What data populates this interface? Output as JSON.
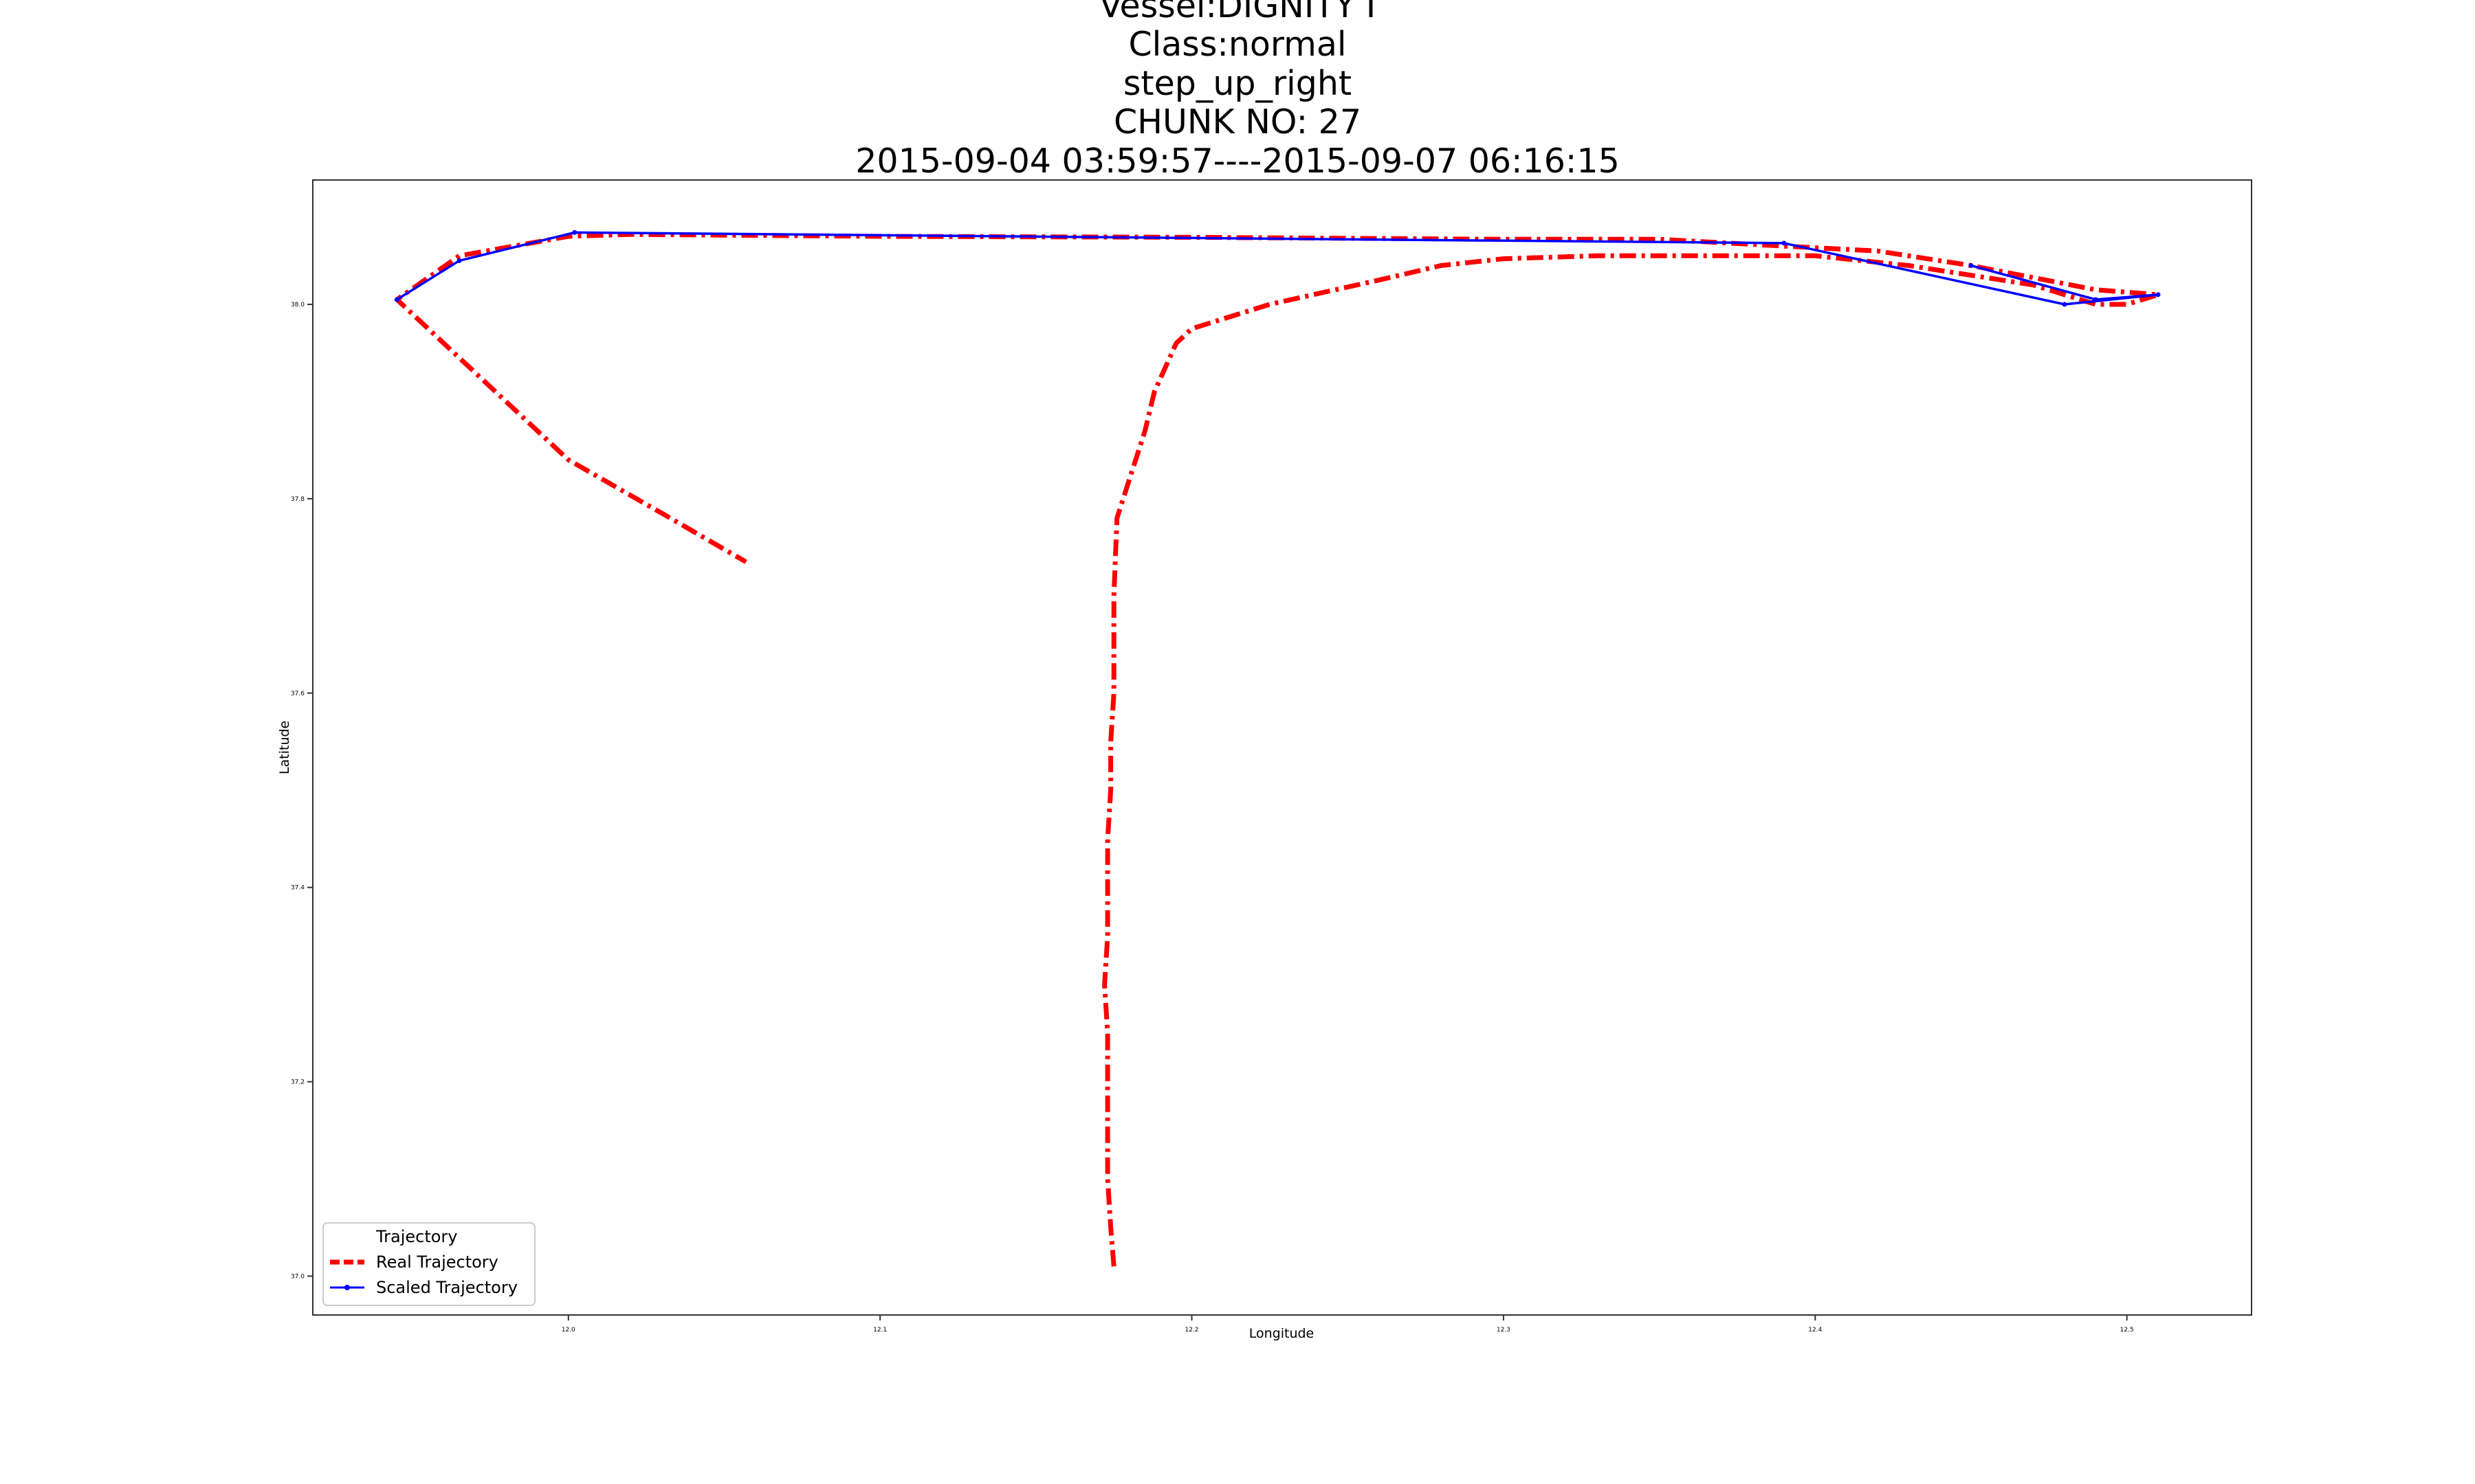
{
  "title_lines": [
    "Vessel:DIGNITY I",
    "Class:normal",
    "step_up_right",
    "CHUNK NO: 27",
    "2015-09-04 03:59:57----2015-09-07 06:16:15"
  ],
  "chart_data": {
    "type": "line",
    "xlabel": "Longitude",
    "ylabel": "Latitude",
    "xlim": [
      11.918,
      12.54
    ],
    "ylim": [
      36.96,
      38.128
    ],
    "x_ticks": [
      "12.0",
      "12.1",
      "12.2",
      "12.3",
      "12.4",
      "12.5"
    ],
    "x_tick_values": [
      12.0,
      12.1,
      12.2,
      12.3,
      12.4,
      12.5
    ],
    "y_ticks": [
      "37.0",
      "37.2",
      "37.4",
      "37.6",
      "37.8",
      "38.0"
    ],
    "y_tick_values": [
      37.0,
      37.2,
      37.4,
      37.6,
      37.8,
      38.0
    ],
    "legend": {
      "title": "Trajectory",
      "placement": "lower-left",
      "entries": [
        "Real Trajectory",
        "Scaled Trajectory"
      ]
    },
    "series": [
      {
        "name": "Real Trajectory",
        "color": "#ff0000",
        "style": "dashdot",
        "x": [
          12.175,
          12.174,
          12.173,
          12.173,
          12.173,
          12.172,
          12.173,
          12.173,
          12.173,
          12.174,
          12.174,
          12.175,
          12.175,
          12.175,
          12.176,
          12.18,
          12.185,
          12.188,
          12.195,
          12.2,
          12.225,
          12.26,
          12.28,
          12.3,
          12.33,
          12.37,
          12.4,
          12.43,
          12.47,
          12.49,
          12.5,
          12.51,
          12.49,
          12.45,
          12.42,
          12.39,
          12.35,
          12.3,
          12.2,
          12.1,
          12.02,
          12.0,
          11.965,
          11.945,
          11.96,
          11.98,
          12.0,
          12.03,
          12.057
        ],
        "y": [
          37.01,
          37.05,
          37.1,
          37.2,
          37.25,
          37.3,
          37.35,
          37.4,
          37.45,
          37.5,
          37.55,
          37.6,
          37.65,
          37.7,
          37.78,
          37.82,
          37.87,
          37.91,
          37.96,
          37.975,
          38.0,
          38.025,
          38.04,
          38.047,
          38.05,
          38.05,
          38.05,
          38.04,
          38.02,
          38.0,
          38.0,
          38.01,
          38.015,
          38.04,
          38.055,
          38.06,
          38.067,
          38.067,
          38.069,
          38.07,
          38.072,
          38.07,
          38.05,
          38.005,
          37.96,
          37.9,
          37.84,
          37.785,
          37.735
        ]
      },
      {
        "name": "Scaled Trajectory",
        "color": "#0000ff",
        "style": "solid",
        "x": [
          11.945,
          11.965,
          12.002,
          12.39,
          12.48,
          12.51,
          12.49,
          12.45
        ],
        "y": [
          38.005,
          38.045,
          38.074,
          38.063,
          38.0,
          38.01,
          38.005,
          38.04
        ]
      }
    ]
  }
}
